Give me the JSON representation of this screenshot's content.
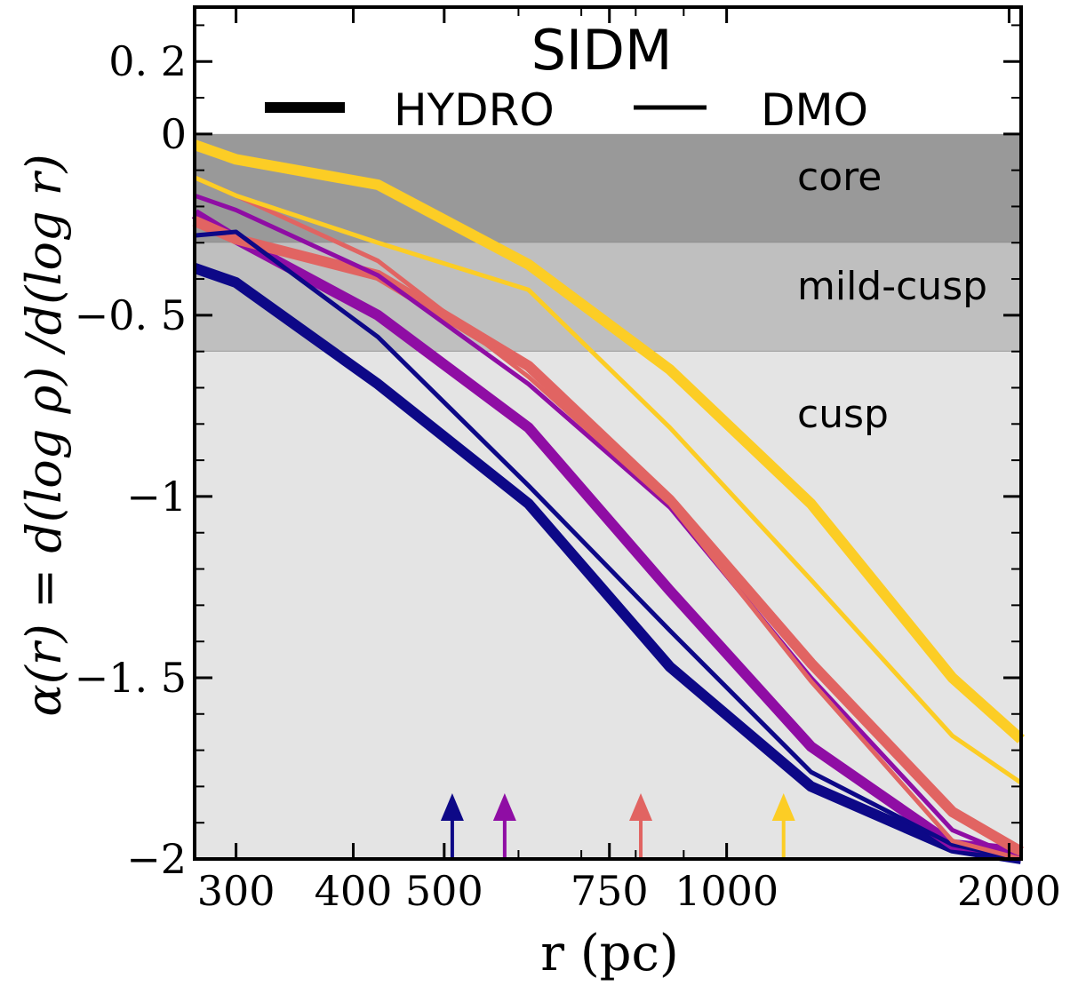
{
  "chart_data": {
    "type": "line",
    "title": "SIDM",
    "xlabel": "r (pc)",
    "ylabel": "α(r) = d(log ρ) /d(log r)",
    "xscale": "log",
    "xlim": [
      271,
      2060
    ],
    "ylim": [
      -2,
      0.35
    ],
    "xticks": [
      {
        "value": 300,
        "label": "300"
      },
      {
        "value": 400,
        "label": "400"
      },
      {
        "value": 500,
        "label": "500"
      },
      {
        "value": 750,
        "label": "750"
      },
      {
        "value": 1000,
        "label": "1000"
      },
      {
        "value": 2000,
        "label": "2000"
      }
    ],
    "yticks": [
      {
        "value": 0.2,
        "label": "0. 2"
      },
      {
        "value": 0,
        "label": "0"
      },
      {
        "value": -0.5,
        "label": "−0. 5"
      },
      {
        "value": -1,
        "label": "−1"
      },
      {
        "value": -1.5,
        "label": "−1. 5"
      },
      {
        "value": -2,
        "label": "−2"
      }
    ],
    "regions": [
      {
        "name": "core",
        "label": "core",
        "from": 0,
        "to": -0.3,
        "color": "#999999"
      },
      {
        "name": "mild-cusp",
        "label": "mild-cusp",
        "from": -0.3,
        "to": -0.6,
        "color": "#bfbfbf"
      },
      {
        "name": "cusp",
        "label": "cusp",
        "from": -0.6,
        "to": -2,
        "color": "#e4e4e4"
      }
    ],
    "legend": {
      "placement": "top-center",
      "entries": [
        {
          "label": "HYDRO",
          "style": "thick"
        },
        {
          "label": "DMO",
          "style": "thin"
        }
      ]
    },
    "series": [
      {
        "name": "halo-1-hydro",
        "kind": "HYDRO",
        "color": "#0d0887",
        "x": [
          271,
          300,
          425,
          615,
          870,
          1230,
          1740,
          2060
        ],
        "y": [
          -0.37,
          -0.41,
          -0.69,
          -1.02,
          -1.47,
          -1.8,
          -1.97,
          -2.0
        ]
      },
      {
        "name": "halo-1-dmo",
        "kind": "DMO",
        "color": "#0d0887",
        "x": [
          271,
          300,
          425,
          615,
          870,
          1230,
          1740,
          2060
        ],
        "y": [
          -0.28,
          -0.27,
          -0.56,
          -0.97,
          -1.37,
          -1.76,
          -1.96,
          -2.0
        ]
      },
      {
        "name": "halo-2-hydro",
        "kind": "HYDRO",
        "color": "#8f0da4",
        "x": [
          271,
          300,
          425,
          615,
          870,
          1230,
          1740,
          2060
        ],
        "y": [
          -0.22,
          -0.29,
          -0.5,
          -0.81,
          -1.26,
          -1.69,
          -1.96,
          -1.98
        ]
      },
      {
        "name": "halo-2-dmo",
        "kind": "DMO",
        "color": "#8f0da4",
        "x": [
          271,
          300,
          425,
          615,
          870,
          1230,
          1740,
          2060
        ],
        "y": [
          -0.17,
          -0.21,
          -0.39,
          -0.69,
          -1.03,
          -1.5,
          -1.92,
          -2.0
        ]
      },
      {
        "name": "halo-3-hydro",
        "kind": "HYDRO",
        "color": "#e16462",
        "x": [
          271,
          300,
          425,
          615,
          870,
          1230,
          1740,
          2060
        ],
        "y": [
          -0.24,
          -0.29,
          -0.39,
          -0.64,
          -1.01,
          -1.46,
          -1.87,
          -1.98
        ]
      },
      {
        "name": "halo-3-dmo",
        "kind": "DMO",
        "color": "#e16462",
        "x": [
          271,
          300,
          425,
          615,
          870,
          1230,
          1740,
          2060
        ],
        "y": [
          -0.12,
          -0.17,
          -0.35,
          -0.67,
          -1.02,
          -1.51,
          -1.95,
          -2.0
        ]
      },
      {
        "name": "halo-4-hydro",
        "kind": "HYDRO",
        "color": "#fccd25",
        "x": [
          271,
          300,
          425,
          615,
          870,
          1230,
          1740,
          2060
        ],
        "y": [
          -0.03,
          -0.07,
          -0.14,
          -0.36,
          -0.65,
          -1.02,
          -1.5,
          -1.67
        ]
      },
      {
        "name": "halo-4-dmo",
        "kind": "DMO",
        "color": "#fccd25",
        "x": [
          271,
          300,
          425,
          615,
          870,
          1230,
          1740,
          2060
        ],
        "y": [
          -0.12,
          -0.17,
          -0.3,
          -0.43,
          -0.81,
          -1.23,
          -1.66,
          -1.79
        ]
      }
    ],
    "arrows": [
      {
        "name": "halo-1-arrow",
        "x": 510,
        "color": "#0d0887"
      },
      {
        "name": "halo-2-arrow",
        "x": 580,
        "color": "#8f0da4"
      },
      {
        "name": "halo-3-arrow",
        "x": 810,
        "color": "#e16462"
      },
      {
        "name": "halo-4-arrow",
        "x": 1150,
        "color": "#fccd25"
      }
    ]
  }
}
